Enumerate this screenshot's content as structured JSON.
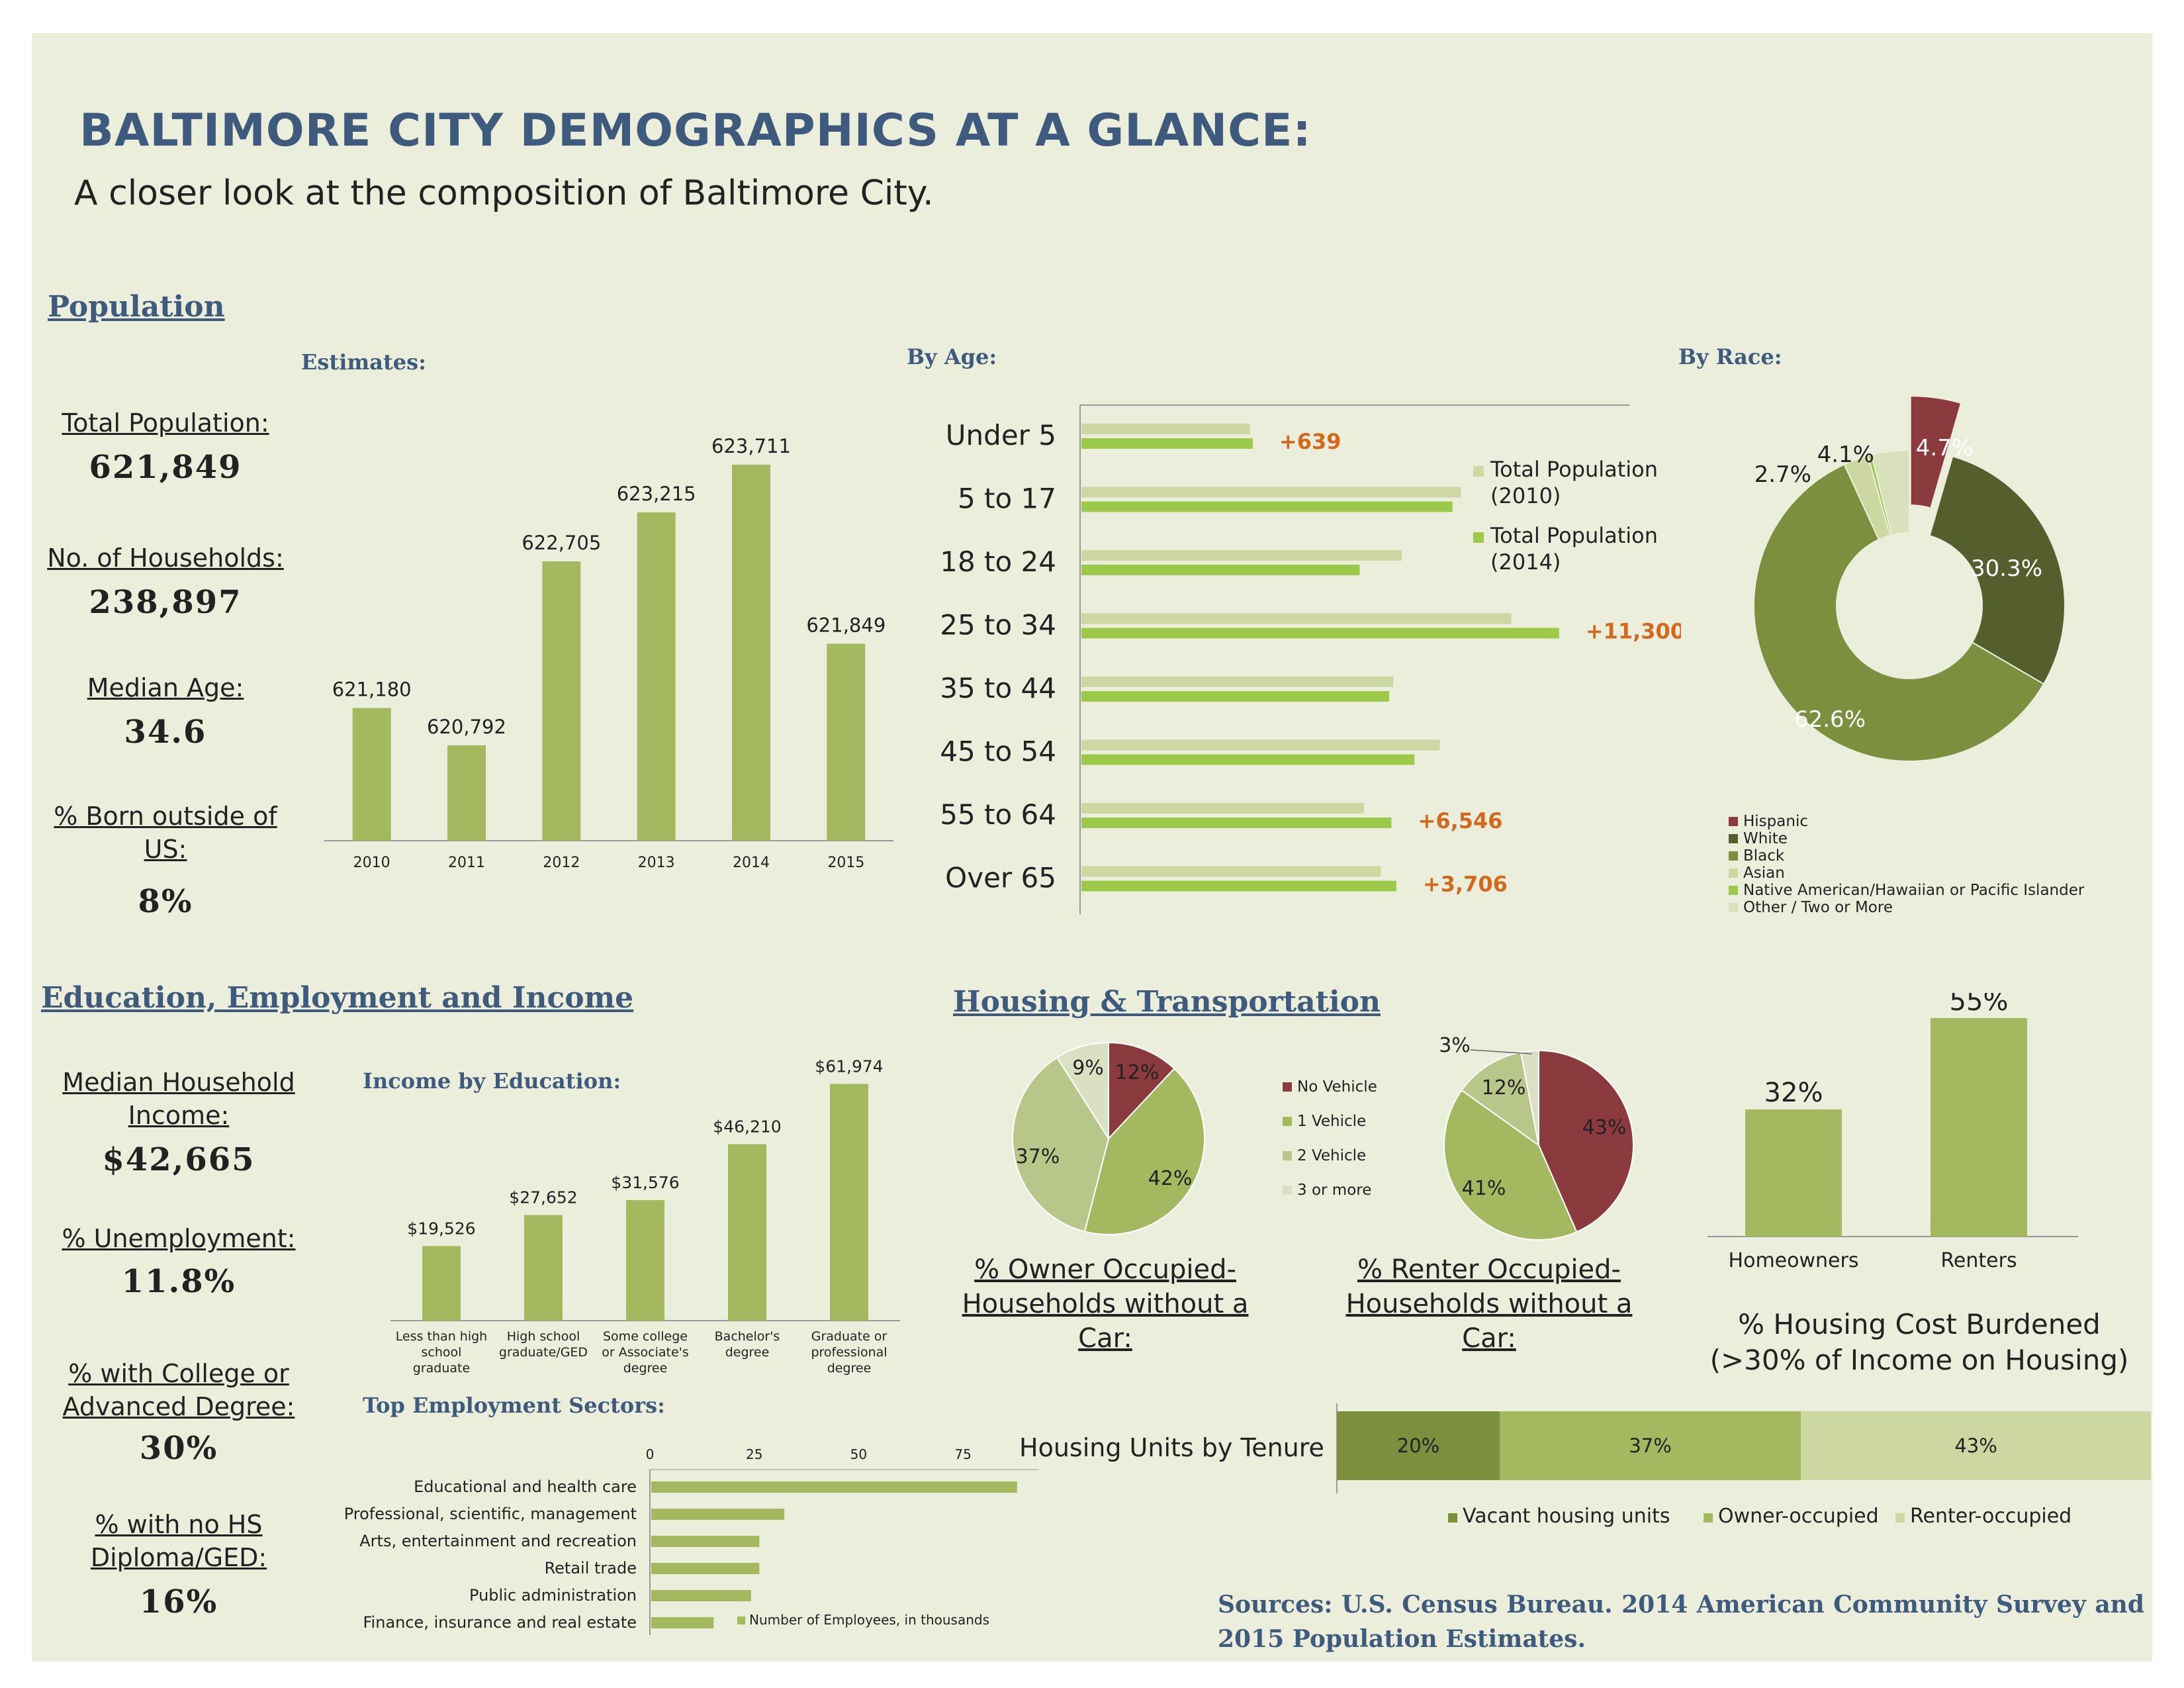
{
  "header": {
    "title": "BALTIMORE CITY DEMOGRAPHICS AT A GLANCE:",
    "subtitle": "A closer look at the composition of Baltimore City."
  },
  "population": {
    "section_title": "Population",
    "estimates_title": "Estimates:",
    "by_age_title": "By Age:",
    "by_race_title": "By Race:",
    "stats": [
      {
        "label": "Total Population:",
        "value": "621,849"
      },
      {
        "label": "No. of Households:",
        "value": "238,897"
      },
      {
        "label": "Median Age:",
        "value": "34.6"
      },
      {
        "label": "% Born outside of US:",
        "value": "8%"
      }
    ]
  },
  "education": {
    "section_title": "Education, Employment and Income",
    "income_title": "Income by Education:",
    "employment_title": "Top Employment Sectors:",
    "stats": [
      {
        "label": "Median Household Income:",
        "value": "$42,665"
      },
      {
        "label": "% Unemployment:",
        "value": "11.8%"
      },
      {
        "label": "% with College or Advanced Degree:",
        "value": "30%"
      },
      {
        "label": "% with no HS Diploma/GED:",
        "value": "16%"
      }
    ]
  },
  "housing": {
    "section_title": "Housing & Transportation",
    "owner_caption": "% Owner Occupied-Households without a Car:",
    "renter_caption": "% Renter Occupied-Households without a Car:",
    "burden_caption": "% Housing Cost Burdened (>30% of Income on Housing)"
  },
  "sources": "Sources: U.S. Census Bureau. 2014 American Community Survey and 2015 Population Estimates.",
  "colors": {
    "bar_green": "#a3b85f",
    "light_green": "#cdd7a2",
    "bright_green": "#9cc94a",
    "dark_olive": "#545f2d",
    "olive": "#7c8f3f",
    "hispanic_red": "#8b3b3d",
    "orange_label": "#d2691e",
    "title_blue": "#3e5a7d"
  },
  "chart_data": [
    {
      "id": "population-estimates",
      "type": "bar",
      "categories": [
        "2010",
        "2011",
        "2012",
        "2013",
        "2014",
        "2015"
      ],
      "values": [
        621180,
        620792,
        622705,
        623215,
        623711,
        621849
      ],
      "labels": [
        "621,180",
        "620,792",
        "622,705",
        "623,215",
        "623,711",
        "621,849"
      ],
      "ylim": [
        619800,
        624000
      ]
    },
    {
      "id": "population-by-age",
      "type": "bar",
      "orientation": "horizontal",
      "categories": [
        "Under 5",
        "5 to 17",
        "18 to 24",
        "25 to 34",
        "35 to 44",
        "45 to 54",
        "55 to 64",
        "Over 65"
      ],
      "series": [
        {
          "name": "Total Population (2010)",
          "values": [
            40000,
            90000,
            76000,
            102000,
            74000,
            85000,
            67000,
            71000
          ]
        },
        {
          "name": "Total Population (2014)",
          "values": [
            40639,
            88000,
            66000,
            113300,
            73000,
            79000,
            73546,
            74706
          ]
        }
      ],
      "annotations": [
        "+639",
        "",
        "",
        "+11,300",
        "",
        "",
        "+6,546",
        "+3,706"
      ],
      "xlim": [
        0,
        135000
      ]
    },
    {
      "id": "population-by-race",
      "type": "pie",
      "donut": true,
      "slices": [
        {
          "name": "Hispanic",
          "value": 4.7,
          "label": "4.7%"
        },
        {
          "name": "White",
          "value": 30.3,
          "label": "30.3%"
        },
        {
          "name": "Black",
          "value": 62.6,
          "label": "62.6%"
        },
        {
          "name": "Asian",
          "value": 2.7,
          "label": "2.7%"
        },
        {
          "name": "Native American/Hawaiian or Pacific Islander",
          "value": 0.4,
          "label": ""
        },
        {
          "name": "Other / Two or More",
          "value": 4.1,
          "label": "4.1%"
        }
      ]
    },
    {
      "id": "income-by-education",
      "type": "bar",
      "categories": [
        "Less than high school graduate",
        "High school graduate/GED",
        "Some college or Associate's degree",
        "Bachelor's degree",
        "Graduate or professional degree"
      ],
      "category_lines": [
        [
          "Less than high",
          "school",
          "graduate"
        ],
        [
          "High school",
          "graduate/GED"
        ],
        [
          "Some college",
          "or Associate's",
          "degree"
        ],
        [
          "Bachelor's",
          "degree"
        ],
        [
          "Graduate or",
          "professional",
          "degree"
        ]
      ],
      "values": [
        19526,
        27652,
        31576,
        46210,
        61974
      ],
      "labels": [
        "$19,526",
        "$27,652",
        "$31,576",
        "$46,210",
        "$61,974"
      ],
      "ylim": [
        0,
        65000
      ]
    },
    {
      "id": "employment-sectors",
      "type": "bar",
      "orientation": "horizontal",
      "categories": [
        "Educational and health care",
        "Professional, scientific, management",
        "Arts, entertainment and recreation",
        "Retail trade",
        "Public administration",
        "Finance, insurance and real estate"
      ],
      "values": [
        88,
        32,
        26,
        26,
        24,
        15
      ],
      "legend": "Number of Employees, in thousands",
      "ticks": [
        "0",
        "25",
        "50",
        "75"
      ],
      "xlim": [
        0,
        92
      ]
    },
    {
      "id": "owner-vehicles",
      "type": "pie",
      "slices": [
        {
          "name": "No Vehicle",
          "value": 12,
          "label": "12%"
        },
        {
          "name": "1 Vehicle",
          "value": 42,
          "label": "42%"
        },
        {
          "name": "2 Vehicle",
          "value": 37,
          "label": "37%"
        },
        {
          "name": "3 or more",
          "value": 9,
          "label": "9%"
        }
      ]
    },
    {
      "id": "renter-vehicles",
      "type": "pie",
      "slices": [
        {
          "name": "No Vehicle",
          "value": 43,
          "label": "43%"
        },
        {
          "name": "1 Vehicle",
          "value": 41,
          "label": "41%"
        },
        {
          "name": "2 Vehicle",
          "value": 12,
          "label": "12%"
        },
        {
          "name": "3 or more",
          "value": 3,
          "label": "3%"
        }
      ]
    },
    {
      "id": "housing-cost-burden",
      "type": "bar",
      "categories": [
        "Homeowners",
        "Renters"
      ],
      "values": [
        32,
        55
      ],
      "labels": [
        "32%",
        "55%"
      ],
      "ylim": [
        0,
        58
      ]
    },
    {
      "id": "housing-tenure",
      "type": "bar",
      "stacked": true,
      "title": "Housing Units by Tenure",
      "series": [
        {
          "name": "Vacant housing units",
          "value": 20,
          "label": "20%"
        },
        {
          "name": "Owner-occupied",
          "value": 37,
          "label": "37%"
        },
        {
          "name": "Renter-occupied",
          "value": 43,
          "label": "43%"
        }
      ]
    }
  ]
}
